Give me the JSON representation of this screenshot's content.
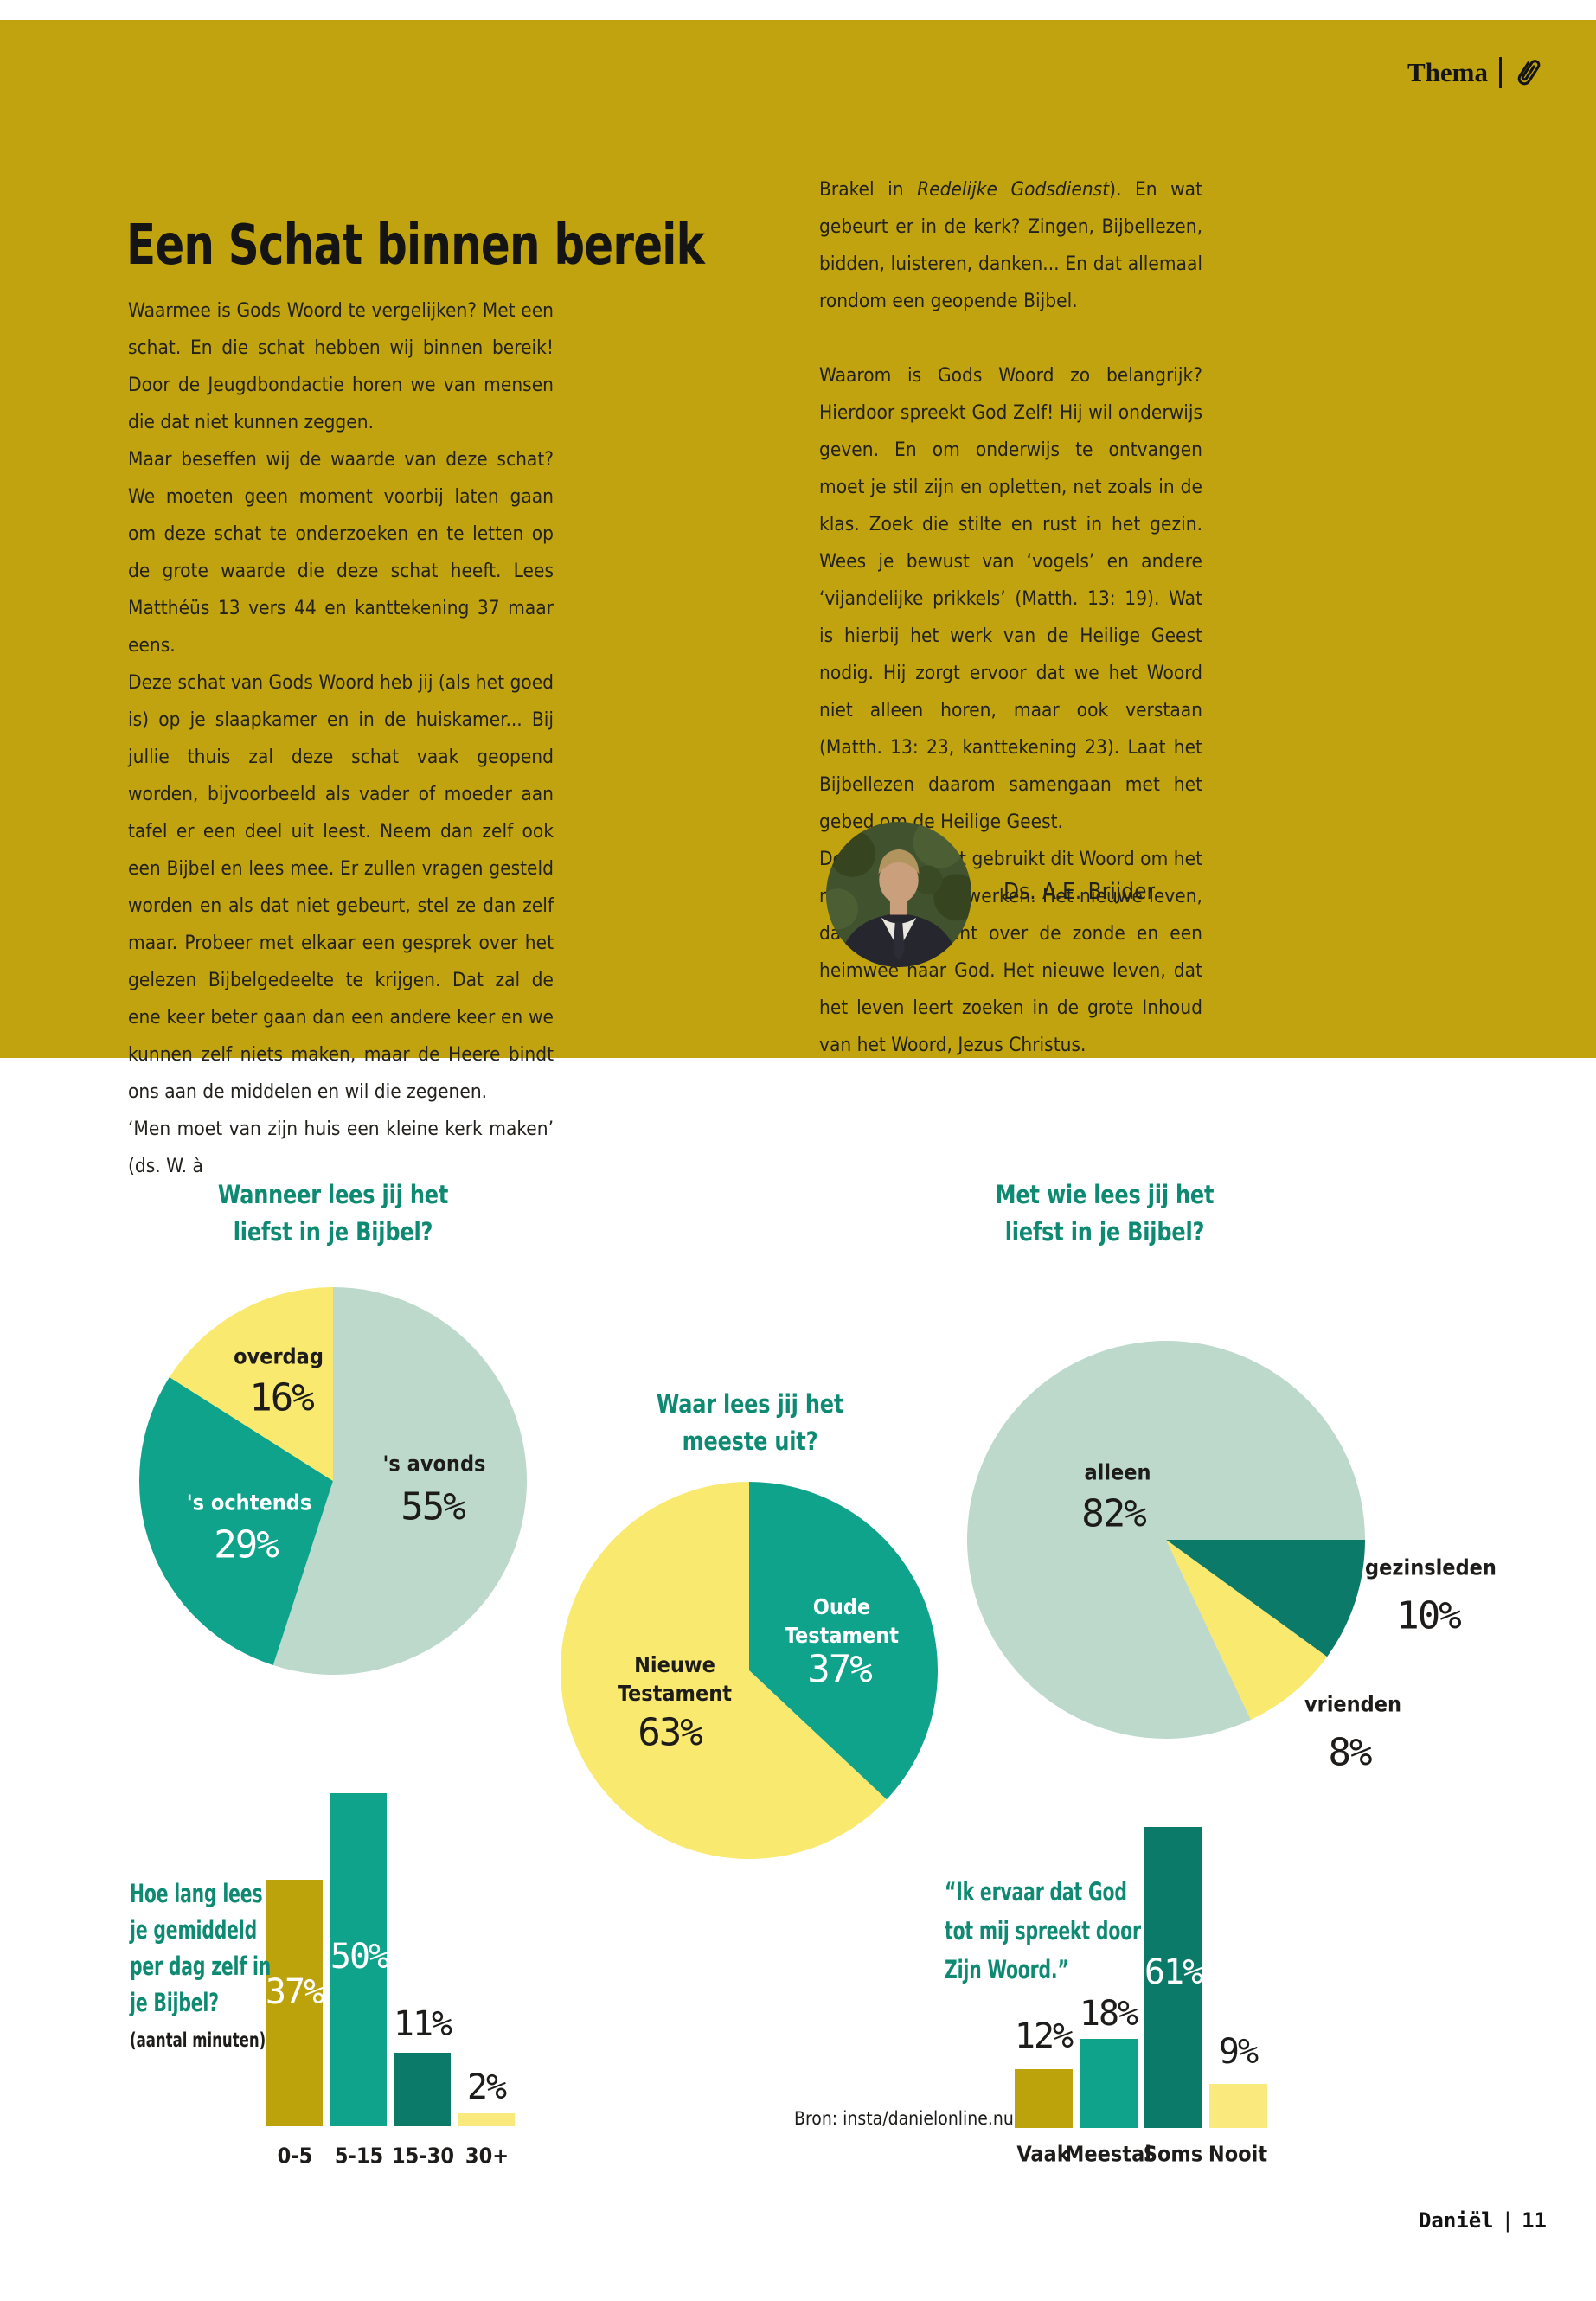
{
  "header": {
    "tag": "Thema"
  },
  "article": {
    "title": "Een Schat binnen bereik",
    "left_column": [
      "Waarmee is Gods Woord te vergelijken? Met een schat. En die schat hebben wij binnen bereik! Door de Jeugdbondactie horen we van mensen die dat niet kunnen zeggen.",
      "Maar beseffen wij de waarde van deze schat? We moeten geen moment voorbij laten gaan om deze schat te onderzoeken en te letten op de grote waarde die deze schat heeft. Lees Matthéüs 13 vers 44 en kanttekening 37 maar eens.",
      "Deze schat van Gods Woord heb jij (als het goed is) op je slaapkamer en in de huiskamer... Bij jullie thuis zal deze schat vaak geopend worden, bijvoorbeeld als vader of moeder aan tafel er een deel uit leest. Neem dan zelf ook een Bijbel en lees mee. Er zullen vragen gesteld worden en als dat niet gebeurt, stel ze dan zelf maar. Probeer met elkaar een gesprek over het gelezen Bijbelgedeelte te krijgen. Dat zal de ene keer beter gaan dan een andere keer en we kunnen zelf niets maken, maar de Heere bindt ons aan de middelen en wil die zegenen.",
      "‘Men moet van zijn huis een kleine kerk maken’ (ds. W. à"
    ],
    "right_column": {
      "p1_before": "Brakel in ",
      "p1_italic": "Redelijke Godsdienst",
      "p1_after": "). En wat gebeurt er in de kerk? Zingen, Bijbellezen, bidden, luisteren, danken... En dat allemaal rondom een geopende Bijbel.",
      "p2": "Waarom is Gods Woord zo belangrijk? Hierdoor spreekt God Zelf! Hij wil onderwijs geven. En om onderwijs te ontvangen moet je stil zijn en opletten, net zoals in de klas. Zoek die stilte en rust in het gezin. Wees je bewust van ‘vogels’ en andere ‘vijandelijke prikkels’ (Matth. 13: 19). Wat is hierbij het werk van de Heilige Geest nodig. Hij zorgt ervoor dat we het Woord niet alleen horen, maar ook verstaan (Matth. 13: 23, kanttekening 23). Laat het Bijbellezen daarom samengaan met het gebed om de Heilige Geest.",
      "p3": "De Heilige Geest gebruikt dit Woord om het nieuwe leven te werken. Het nieuwe leven, dat verdriet kent over de zonde en een heimwee naar God. Het nieuwe leven, dat het leven leert zoeken in de grote Inhoud van het Woord, Jezus Christus."
    },
    "author": "Ds. A.E. Brijder"
  },
  "source": "Bron: insta/danielonline.nu",
  "footer": {
    "magazine": "Daniël",
    "separator": "|",
    "page": "11"
  },
  "palette": {
    "gold": "#C0A30E",
    "mint": "#BCD9CC",
    "teal": "#10A38C",
    "teal_dark": "#0C7A68",
    "yellow": "#F9E96F",
    "yellow_pale": "#FAEA7D",
    "title_teal": "#0E8A72",
    "ink": "#1D1C1A"
  },
  "chart_data": [
    {
      "id": "pie-wanneer",
      "type": "pie",
      "title": "Wanneer lees jij het liefst in je Bijbel?",
      "title_lines": [
        "Wanneer lees jij het",
        "liefst in je Bijbel?"
      ],
      "start_angle": 0,
      "slices": [
        {
          "label": "'s avonds",
          "value": 55,
          "value_label": "55%",
          "color": "#BCD9CC",
          "text_color": "#1d1c1a"
        },
        {
          "label": "'s ochtends",
          "value": 29,
          "value_label": "29%",
          "color": "#10A38C",
          "text_color": "#ffffff"
        },
        {
          "label": "overdag",
          "value": 16,
          "value_label": "16%",
          "color": "#F9E96F",
          "text_color": "#1d1c1a"
        }
      ]
    },
    {
      "id": "pie-waar",
      "type": "pie",
      "title": "Waar lees jij het meeste uit?",
      "title_lines": [
        "Waar lees jij het",
        "meeste uit?"
      ],
      "start_angle": 0,
      "slices": [
        {
          "label": "Oude Testament",
          "value": 37,
          "value_label": "37%",
          "color": "#10A38C",
          "text_color": "#ffffff"
        },
        {
          "label": "Nieuwe Testament",
          "value": 63,
          "value_label": "63%",
          "color": "#F9E96F",
          "text_color": "#1d1c1a"
        }
      ]
    },
    {
      "id": "pie-metwie",
      "type": "pie",
      "title": "Met wie lees jij het liefst in je Bijbel?",
      "title_lines": [
        "Met wie lees jij het",
        "liefst in je Bijbel?"
      ],
      "start_angle": 90,
      "slices": [
        {
          "label": "gezinsleden",
          "value": 10,
          "value_label": "10%",
          "color": "#0C7A68",
          "text_color": "#1d1c1a"
        },
        {
          "label": "vrienden",
          "value": 8,
          "value_label": "8%",
          "color": "#F9E96F",
          "text_color": "#1d1c1a"
        },
        {
          "label": "alleen",
          "value": 82,
          "value_label": "82%",
          "color": "#BCD9CC",
          "text_color": "#1d1c1a"
        }
      ]
    },
    {
      "id": "bar-hoelang",
      "type": "bar",
      "title": "Hoe lang lees je gemiddeld per dag zelf in je Bijbel?",
      "title_lines": [
        "Hoe lang lees",
        "je gemiddeld",
        "per dag zelf in",
        "je Bijbel?"
      ],
      "subtitle": "(aantal minuten)",
      "categories": [
        "0-5",
        "5-15",
        "15-30",
        "30+"
      ],
      "values": [
        37,
        50,
        11,
        2
      ],
      "value_labels": [
        "37%",
        "50%",
        "11%",
        "2%"
      ],
      "colors": [
        "#BCA30B",
        "#10A38C",
        "#0C7A68",
        "#FAEA7D"
      ],
      "ylim": [
        0,
        50
      ],
      "grid": false,
      "legend": "none"
    },
    {
      "id": "bar-ervaar",
      "type": "bar",
      "title": "“Ik ervaar dat God tot mij spreekt door Zijn Woord.”",
      "title_lines": [
        "“Ik ervaar dat God",
        "tot mij spreekt door",
        "Zijn Woord.”"
      ],
      "categories": [
        "Vaak",
        "Meestal",
        "Soms",
        "Nooit"
      ],
      "values": [
        12,
        18,
        61,
        9
      ],
      "value_labels": [
        "12%",
        "18%",
        "61%",
        "9%"
      ],
      "colors": [
        "#BCA30B",
        "#10A38C",
        "#0C7A68",
        "#FAEA7D"
      ],
      "ylim": [
        0,
        61
      ],
      "grid": false,
      "legend": "none"
    }
  ]
}
